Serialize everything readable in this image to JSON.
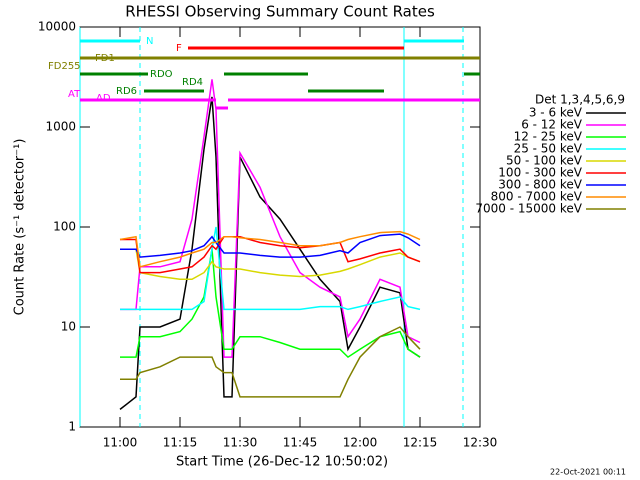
{
  "chart_data": {
    "type": "line",
    "title": "RHESSI Observing Summary Count Rates",
    "xlabel": "Start Time (26-Dec-12 10:50:02)",
    "ylabel": "Count Rate (s⁻¹ detector⁻¹)",
    "legend_title": "Det 1,3,4,5,6,9",
    "footer": "22-Oct-2021 00:11",
    "xlim": [
      "10:50",
      "12:30"
    ],
    "xticks": [
      "11:00",
      "11:15",
      "11:30",
      "11:45",
      "12:00",
      "12:15",
      "12:30"
    ],
    "ylim": [
      1,
      10000
    ],
    "yticks": [
      1,
      10,
      100,
      1000,
      10000
    ],
    "log_y": true,
    "legend": "right",
    "x": [
      "11:00",
      "11:04",
      "11:05",
      "11:10",
      "11:15",
      "11:18",
      "11:21",
      "11:23",
      "11:24",
      "11:26",
      "11:28",
      "11:30",
      "11:35",
      "11:40",
      "11:45",
      "11:50",
      "11:55",
      "11:57",
      "12:00",
      "12:05",
      "12:10",
      "12:12",
      "12:15"
    ],
    "series": [
      {
        "name": "3 - 6 keV",
        "color": "#000000",
        "values": [
          1.5,
          2,
          10,
          10,
          12,
          60,
          600,
          2000,
          500,
          2,
          2,
          500,
          200,
          120,
          60,
          30,
          18,
          6,
          10,
          25,
          22,
          6,
          5
        ]
      },
      {
        "name": "6 - 12 keV",
        "color": "#ff00ff",
        "values": [
          15,
          15,
          40,
          40,
          45,
          120,
          800,
          3000,
          1500,
          5,
          5,
          550,
          250,
          80,
          35,
          25,
          20,
          8,
          12,
          30,
          25,
          8,
          7
        ]
      },
      {
        "name": "12 - 25 keV",
        "color": "#00ff00",
        "values": [
          5,
          5,
          8,
          8,
          9,
          12,
          20,
          60,
          20,
          6,
          6,
          8,
          8,
          7,
          6,
          6,
          6,
          5,
          6,
          8,
          9,
          6,
          5
        ]
      },
      {
        "name": "25 - 50 keV",
        "color": "#00ffff",
        "values": [
          15,
          15,
          15,
          15,
          15,
          15,
          18,
          60,
          100,
          15,
          15,
          15,
          15,
          15,
          15,
          16,
          16,
          15,
          16,
          18,
          20,
          16,
          15
        ]
      },
      {
        "name": "50 - 100 keV",
        "color": "#d8d800",
        "values": [
          60,
          60,
          35,
          32,
          30,
          30,
          35,
          45,
          40,
          38,
          38,
          38,
          35,
          33,
          32,
          33,
          36,
          38,
          42,
          50,
          55,
          50,
          45
        ]
      },
      {
        "name": "100 - 300 keV",
        "color": "#ff0000",
        "values": [
          75,
          75,
          35,
          35,
          38,
          40,
          50,
          65,
          60,
          80,
          80,
          80,
          70,
          65,
          62,
          65,
          70,
          45,
          48,
          55,
          60,
          50,
          45
        ]
      },
      {
        "name": "300 - 800 keV",
        "color": "#0000ff",
        "values": [
          60,
          60,
          50,
          52,
          55,
          58,
          65,
          80,
          70,
          55,
          55,
          55,
          52,
          50,
          50,
          52,
          58,
          55,
          70,
          82,
          85,
          78,
          65
        ]
      },
      {
        "name": "800 - 7000 keV",
        "color": "#ff8c00",
        "values": [
          75,
          80,
          40,
          45,
          50,
          55,
          60,
          70,
          70,
          80,
          80,
          78,
          75,
          70,
          65,
          65,
          70,
          75,
          80,
          88,
          90,
          85,
          75
        ]
      },
      {
        "name": "7000 - 15000 keV",
        "color": "#808000",
        "values": [
          3,
          3,
          3.5,
          4,
          5,
          5,
          5,
          5,
          4,
          3.5,
          3.5,
          2,
          2,
          2,
          2,
          2,
          2,
          3,
          5,
          8,
          10,
          8,
          6
        ]
      }
    ],
    "flags": [
      {
        "label": "N",
        "color": "#00ffff",
        "segments": [
          [
            "10:50",
            "11:05"
          ],
          [
            "12:11",
            "12:26"
          ]
        ]
      },
      {
        "label": "F",
        "color": "#ff0000",
        "segments": [
          [
            "11:17",
            "12:11"
          ]
        ]
      },
      {
        "label": "FD1",
        "color": "#808000",
        "segments": [
          [
            "10:50",
            "12:30"
          ]
        ]
      },
      {
        "label": "FD255",
        "color": "#808000",
        "segments": []
      },
      {
        "label": "RDO",
        "color": "#008000",
        "segments": [
          [
            "10:50",
            "11:07"
          ],
          [
            "11:26",
            "11:47"
          ],
          [
            "12:26",
            "12:30"
          ]
        ]
      },
      {
        "label": "RD4",
        "color": "#008000",
        "segments": []
      },
      {
        "label": "RD6",
        "color": "#008000",
        "segments": [
          [
            "11:06",
            "11:21"
          ],
          [
            "11:47",
            "12:06"
          ]
        ]
      },
      {
        "label": "AD",
        "color": "#ff00ff",
        "segments": [
          [
            "11:24",
            "11:27"
          ]
        ]
      },
      {
        "label": "AT",
        "color": "#ff00ff",
        "segments": [
          [
            "10:50",
            "11:24"
          ],
          [
            "11:27",
            "12:30"
          ]
        ]
      }
    ]
  }
}
